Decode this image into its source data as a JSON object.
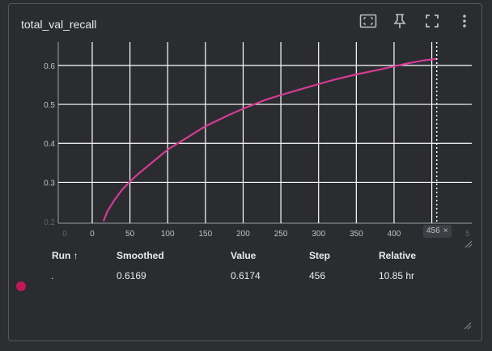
{
  "card": {
    "title": "total_val_recall"
  },
  "toolbar": [
    {
      "name": "fit-domain-icon"
    },
    {
      "name": "pin-icon"
    },
    {
      "name": "fullscreen-icon"
    },
    {
      "name": "more-vert-icon"
    }
  ],
  "chart_data": {
    "type": "line",
    "title": "",
    "xlabel": "",
    "ylabel": "",
    "xlim": [
      -45,
      503
    ],
    "ylim": [
      0.195,
      0.66
    ],
    "xticks": [
      "0",
      "50",
      "100",
      "150",
      "200",
      "250",
      "300",
      "350",
      "400",
      "450"
    ],
    "yticks": [
      "0.3",
      "0.4",
      "0.5",
      "0.6"
    ],
    "clipped_tick_labels": {
      "x_left": "0",
      "x_right": "5",
      "y_bottom": "0.2"
    },
    "grid": true,
    "color": "#d63b94",
    "series": [
      {
        "x": [
          15,
          20,
          30,
          40,
          50,
          60,
          80,
          100,
          120,
          150,
          180,
          200,
          230,
          250,
          280,
          300,
          320,
          350,
          380,
          400,
          420,
          440,
          456
        ],
        "y": [
          0.2,
          0.225,
          0.256,
          0.282,
          0.302,
          0.32,
          0.352,
          0.384,
          0.408,
          0.444,
          0.472,
          0.489,
          0.512,
          0.524,
          0.541,
          0.552,
          0.563,
          0.577,
          0.589,
          0.598,
          0.606,
          0.613,
          0.6169
        ]
      }
    ],
    "hover_step": 456,
    "hover_label": "456"
  },
  "hover_close": "×",
  "table": {
    "headers": {
      "run": "Run ↑",
      "smoothed": "Smoothed",
      "value": "Value",
      "step": "Step",
      "relative": "Relative"
    },
    "rows": [
      {
        "run": ".",
        "smoothed": "0.6169",
        "value": "0.6174",
        "step": "456",
        "relative": "10.85 hr",
        "color": "#c2185b"
      }
    ]
  }
}
